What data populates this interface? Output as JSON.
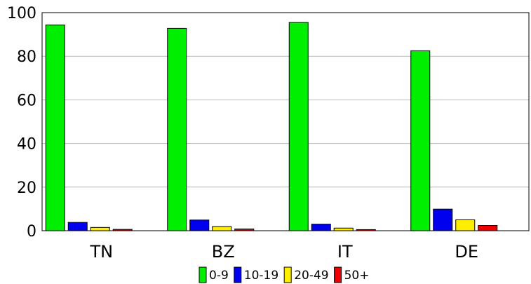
{
  "chart_data": {
    "type": "bar",
    "categories": [
      "TN",
      "BZ",
      "IT",
      "DE"
    ],
    "series": [
      {
        "name": "0-9",
        "values": [
          94.3,
          92.8,
          95.5,
          82.5
        ],
        "color": "#00ee00"
      },
      {
        "name": "10-19",
        "values": [
          3.8,
          4.9,
          3.0,
          9.9
        ],
        "color": "#0000ee"
      },
      {
        "name": "20-49",
        "values": [
          1.5,
          1.9,
          1.2,
          5.0
        ],
        "color": "#ffee00"
      },
      {
        "name": "50+",
        "values": [
          0.6,
          0.8,
          0.5,
          2.4
        ],
        "color": "#ee0000"
      }
    ],
    "ylim": [
      0,
      100
    ],
    "yticks": [
      0,
      20,
      40,
      60,
      80,
      100
    ],
    "grid": true,
    "legend": "bottom"
  }
}
